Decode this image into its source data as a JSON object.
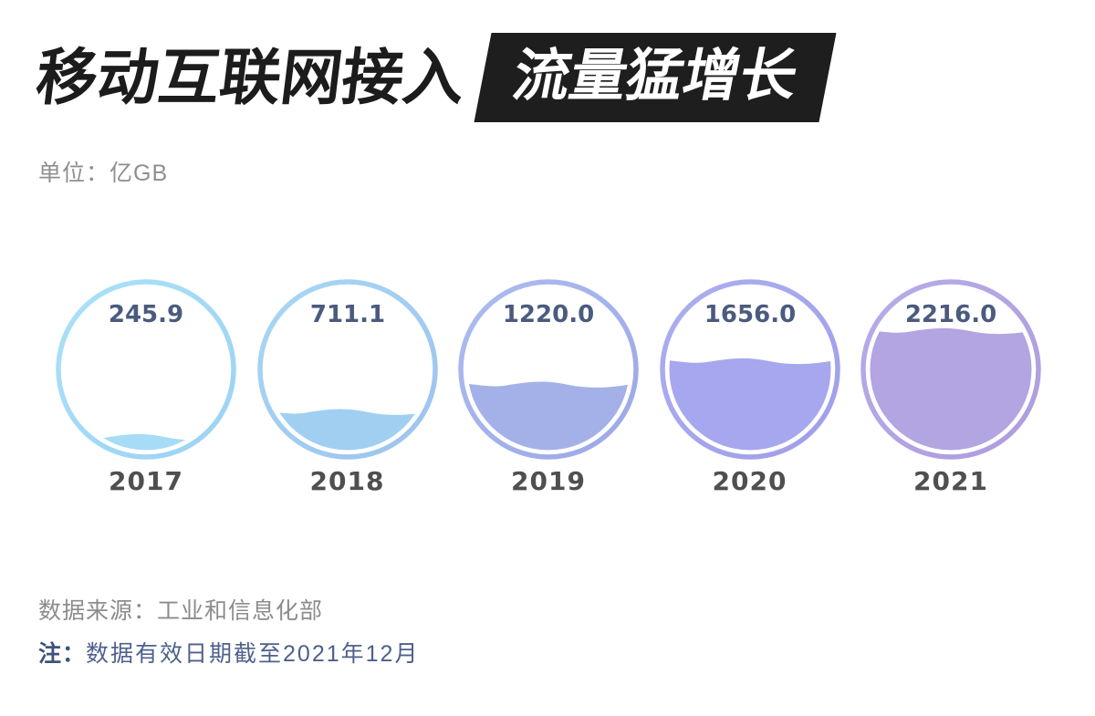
{
  "header": {
    "title_main": "移动互联网接入",
    "title_box": "流量猛增长"
  },
  "unit_label": "单位：亿GB",
  "chart_data": {
    "type": "liquid_fill_gauge",
    "title": "移动互联网接入流量猛增长",
    "unit": "亿GB",
    "categories": [
      "2017",
      "2018",
      "2019",
      "2020",
      "2021"
    ],
    "values": [
      245.9,
      711.1,
      1220.0,
      1656.0,
      2216.0
    ],
    "value_labels": [
      "245.9",
      "711.1",
      "1220.0",
      "1656.0",
      "2216.0"
    ],
    "scale_max": 3000,
    "colors": [
      "#A6DCF6",
      "#A1CFF1",
      "#A4B1E9",
      "#A6A7EE",
      "#B3A4E2"
    ],
    "gradients": [
      {
        "from": "#ABE1F8",
        "to": "#9CD2F3"
      },
      {
        "from": "#A8D7F4",
        "to": "#9CC3EE"
      },
      {
        "from": "#ADBCF0",
        "to": "#9CA8E6"
      },
      {
        "from": "#ACAEF0",
        "to": "#A09EE9"
      },
      {
        "from": "#B7ACE8",
        "to": "#AF9CDE"
      }
    ],
    "value_text_color": "#4A5B7E",
    "year_text_color": "#4F4F4F",
    "layout": {
      "legend": "none",
      "grid": "off",
      "value_position": "inside-top",
      "category_position": "below"
    }
  },
  "footer": {
    "source": "数据来源：工业和信息化部",
    "note_prefix": "注：",
    "note_text": "数据有效日期截至2021年12月"
  }
}
